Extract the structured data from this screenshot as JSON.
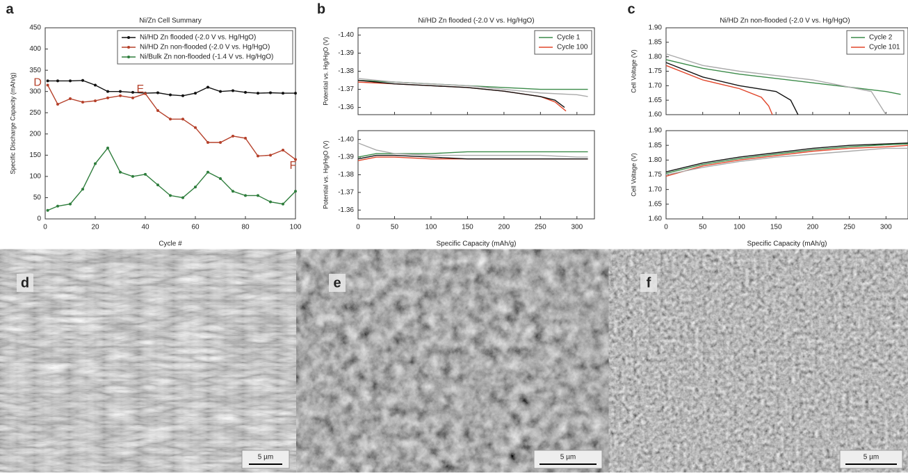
{
  "chart_data": [
    {
      "type": "line",
      "panel": "a",
      "title": "Ni/Zn Cell Summary",
      "xlabel": "Cycle #",
      "ylabel": "Specific Discharge Capacity (mAh/g)",
      "x": [
        1,
        5,
        10,
        15,
        20,
        25,
        30,
        35,
        40,
        45,
        50,
        55,
        60,
        65,
        70,
        75,
        80,
        85,
        90,
        95,
        100
      ],
      "series": [
        {
          "name": "Ni/HD Zn flooded (-2.0 V vs. Hg/HgO)",
          "color": "#111111",
          "values": [
            325,
            325,
            325,
            326,
            315,
            300,
            300,
            298,
            296,
            297,
            292,
            290,
            296,
            310,
            300,
            302,
            298,
            296,
            297,
            296,
            296
          ]
        },
        {
          "name": "Ni/HD Zn non-flooded (-2.0 V vs. Hg/HgO)",
          "color": "#b5402a",
          "values": [
            315,
            270,
            283,
            275,
            278,
            285,
            290,
            285,
            295,
            255,
            235,
            235,
            215,
            180,
            180,
            195,
            190,
            148,
            150,
            162,
            140
          ]
        },
        {
          "name": "Ni/Bulk Zn non-flooded (-1.4 V vs. Hg/HgO)",
          "color": "#2e7d3c",
          "values": [
            20,
            30,
            35,
            70,
            130,
            167,
            110,
            100,
            105,
            80,
            55,
            50,
            75,
            110,
            95,
            65,
            55,
            55,
            40,
            35,
            65
          ]
        }
      ],
      "markers": true,
      "annotations": [
        {
          "text": "D",
          "x": -3,
          "y": 320
        },
        {
          "text": "E",
          "x": 38,
          "y": 305
        },
        {
          "text": "F",
          "x": 99,
          "y": 125
        }
      ],
      "xlim": [
        0,
        100
      ],
      "xticks": [
        0,
        20,
        40,
        60,
        80,
        100
      ],
      "ylim": [
        0,
        450
      ],
      "yticks": [
        0,
        50,
        100,
        150,
        200,
        250,
        300,
        350,
        400,
        450
      ],
      "legend": "upper right"
    },
    {
      "type": "line",
      "panel": "b",
      "title": "Ni/HD Zn flooded (-2.0 V vs. Hg/HgO)",
      "ylabel": "Potential vs. Hg/HgO (V)",
      "series": [
        {
          "name": "Cycle 1",
          "color": "#3a8a48",
          "x": [
            0,
            50,
            100,
            150,
            200,
            250,
            300,
            315
          ],
          "values": [
            -1.375,
            -1.374,
            -1.373,
            -1.372,
            -1.371,
            -1.37,
            -1.37,
            -1.37
          ]
        },
        {
          "name": "Cycle 100",
          "color": "#e0452a",
          "x": [
            0,
            50,
            100,
            150,
            200,
            250,
            270,
            285
          ],
          "values": [
            -1.374,
            -1.373,
            -1.372,
            -1.371,
            -1.369,
            -1.366,
            -1.363,
            -1.358
          ]
        },
        {
          "color": "#111111",
          "x": [
            0,
            50,
            100,
            150,
            200,
            250,
            270,
            283
          ],
          "values": [
            -1.375,
            -1.373,
            -1.372,
            -1.371,
            -1.369,
            -1.366,
            -1.364,
            -1.36
          ]
        },
        {
          "color": "#aaaaaa",
          "x": [
            0,
            50,
            100,
            150,
            200,
            250,
            300,
            315
          ],
          "values": [
            -1.376,
            -1.374,
            -1.373,
            -1.372,
            -1.37,
            -1.368,
            -1.367,
            -1.366
          ]
        }
      ],
      "xlim": [
        0,
        324
      ],
      "xticks": [
        0,
        50,
        100,
        150,
        200,
        250,
        300
      ],
      "ylim": [
        -1.356,
        -1.404
      ],
      "yticks": [
        {
          "value": -1.4,
          "label": "-1.40"
        },
        {
          "value": -1.39,
          "label": "-1.39"
        },
        {
          "value": -1.38,
          "label": "-1.38"
        },
        {
          "value": -1.37,
          "label": "-1.37"
        },
        {
          "value": -1.36,
          "label": "-1.36"
        }
      ],
      "legend": "upper right"
    },
    {
      "type": "line",
      "xlabel": "Specific Capacity (mAh/g)",
      "ylabel": "Potential vs. Hg/HgO (V)",
      "series": [
        {
          "color": "#3a8a48",
          "x": [
            0,
            25,
            50,
            100,
            150,
            200,
            250,
            300,
            315
          ],
          "values": [
            -1.39,
            -1.392,
            -1.392,
            -1.392,
            -1.393,
            -1.393,
            -1.393,
            -1.393,
            -1.393
          ]
        },
        {
          "color": "#e0452a",
          "x": [
            0,
            25,
            50,
            100,
            150,
            200,
            250,
            300,
            315
          ],
          "values": [
            -1.388,
            -1.39,
            -1.39,
            -1.389,
            -1.389,
            -1.389,
            -1.389,
            -1.389,
            -1.389
          ]
        },
        {
          "color": "#111111",
          "x": [
            0,
            25,
            50,
            100,
            150,
            200,
            250,
            300,
            315
          ],
          "values": [
            -1.389,
            -1.391,
            -1.391,
            -1.39,
            -1.389,
            -1.389,
            -1.389,
            -1.389,
            -1.389
          ]
        },
        {
          "color": "#aaaaaa",
          "x": [
            0,
            25,
            50,
            100,
            150,
            200,
            250,
            300,
            315
          ],
          "values": [
            -1.398,
            -1.394,
            -1.392,
            -1.391,
            -1.391,
            -1.391,
            -1.391,
            -1.39,
            -1.39
          ]
        }
      ],
      "xlim": [
        0,
        324
      ],
      "xticks": [
        0,
        50,
        100,
        150,
        200,
        250,
        300
      ],
      "ylim": [
        -1.355,
        -1.405
      ],
      "yticks": [
        {
          "value": -1.4,
          "label": "-1.40"
        },
        {
          "value": -1.39,
          "label": "-1.39"
        },
        {
          "value": -1.38,
          "label": "-1.38"
        },
        {
          "value": -1.37,
          "label": "-1.37"
        },
        {
          "value": -1.36,
          "label": "-1.36"
        }
      ]
    },
    {
      "type": "line",
      "panel": "c",
      "title": "Ni/HD Zn non-flooded (-2.0 V vs. Hg/HgO)",
      "ylabel": "Cell Voltage (V)",
      "series": [
        {
          "name": "Cycle 2",
          "color": "#3a8a48",
          "x": [
            0,
            50,
            100,
            200,
            300,
            320
          ],
          "values": [
            1.79,
            1.76,
            1.74,
            1.71,
            1.68,
            1.67
          ]
        },
        {
          "name": "Cycle 101",
          "color": "#e0452a",
          "x": [
            0,
            50,
            100,
            130,
            140,
            145
          ],
          "values": [
            1.77,
            1.72,
            1.69,
            1.66,
            1.63,
            1.6
          ]
        },
        {
          "color": "#111111",
          "x": [
            0,
            50,
            100,
            150,
            170,
            180
          ],
          "values": [
            1.78,
            1.73,
            1.7,
            1.68,
            1.65,
            1.6
          ]
        },
        {
          "color": "#aaaaaa",
          "x": [
            0,
            50,
            100,
            200,
            280,
            300
          ],
          "values": [
            1.81,
            1.77,
            1.75,
            1.72,
            1.68,
            1.6
          ]
        }
      ],
      "xlim": [
        0,
        330
      ],
      "xticks": [
        0,
        50,
        100,
        150,
        200,
        250,
        300
      ],
      "ylim": [
        1.6,
        1.9
      ],
      "yticks": [
        {
          "value": 1.6,
          "label": "1.60"
        },
        {
          "value": 1.65,
          "label": "1.65"
        },
        {
          "value": 1.7,
          "label": "1.70"
        },
        {
          "value": 1.75,
          "label": "1.75"
        },
        {
          "value": 1.8,
          "label": "1.80"
        },
        {
          "value": 1.85,
          "label": "1.85"
        },
        {
          "value": 1.9,
          "label": "1.90"
        }
      ],
      "legend": "upper right"
    },
    {
      "type": "line",
      "xlabel": "Specific Capacity (mAh/g)",
      "ylabel": "Cell Voltage (V)",
      "series": [
        {
          "color": "#e0452a",
          "x": [
            0,
            50,
            100,
            150,
            200,
            250,
            300,
            330
          ],
          "values": [
            1.745,
            1.78,
            1.8,
            1.815,
            1.83,
            1.84,
            1.845,
            1.85
          ]
        },
        {
          "color": "#111111",
          "x": [
            0,
            50,
            100,
            150,
            200,
            250,
            300,
            330
          ],
          "values": [
            1.76,
            1.79,
            1.81,
            1.825,
            1.84,
            1.85,
            1.855,
            1.858
          ]
        },
        {
          "color": "#3a8a48",
          "x": [
            0,
            50,
            100,
            150,
            200,
            250,
            300,
            330
          ],
          "values": [
            1.755,
            1.785,
            1.805,
            1.82,
            1.835,
            1.845,
            1.852,
            1.855
          ]
        },
        {
          "color": "#aaaaaa",
          "x": [
            0,
            50,
            100,
            150,
            200,
            250,
            300,
            330
          ],
          "values": [
            1.75,
            1.775,
            1.795,
            1.81,
            1.82,
            1.83,
            1.84,
            1.84
          ]
        }
      ],
      "xlim": [
        0,
        330
      ],
      "xticks": [
        0,
        50,
        100,
        150,
        200,
        250,
        300
      ],
      "ylim": [
        1.6,
        1.9
      ],
      "yticks": [
        {
          "value": 1.6,
          "label": "1.60"
        },
        {
          "value": 1.65,
          "label": "1.65"
        },
        {
          "value": 1.7,
          "label": "1.70"
        },
        {
          "value": 1.75,
          "label": "1.75"
        },
        {
          "value": 1.8,
          "label": "1.80"
        },
        {
          "value": 1.85,
          "label": "1.85"
        },
        {
          "value": 1.9,
          "label": "1.90"
        }
      ]
    }
  ],
  "micrographs": [
    {
      "label": "d",
      "scale_bar": "5 µm"
    },
    {
      "label": "e",
      "scale_bar": "5 µm"
    },
    {
      "label": "f",
      "scale_bar": "5 µm"
    }
  ]
}
